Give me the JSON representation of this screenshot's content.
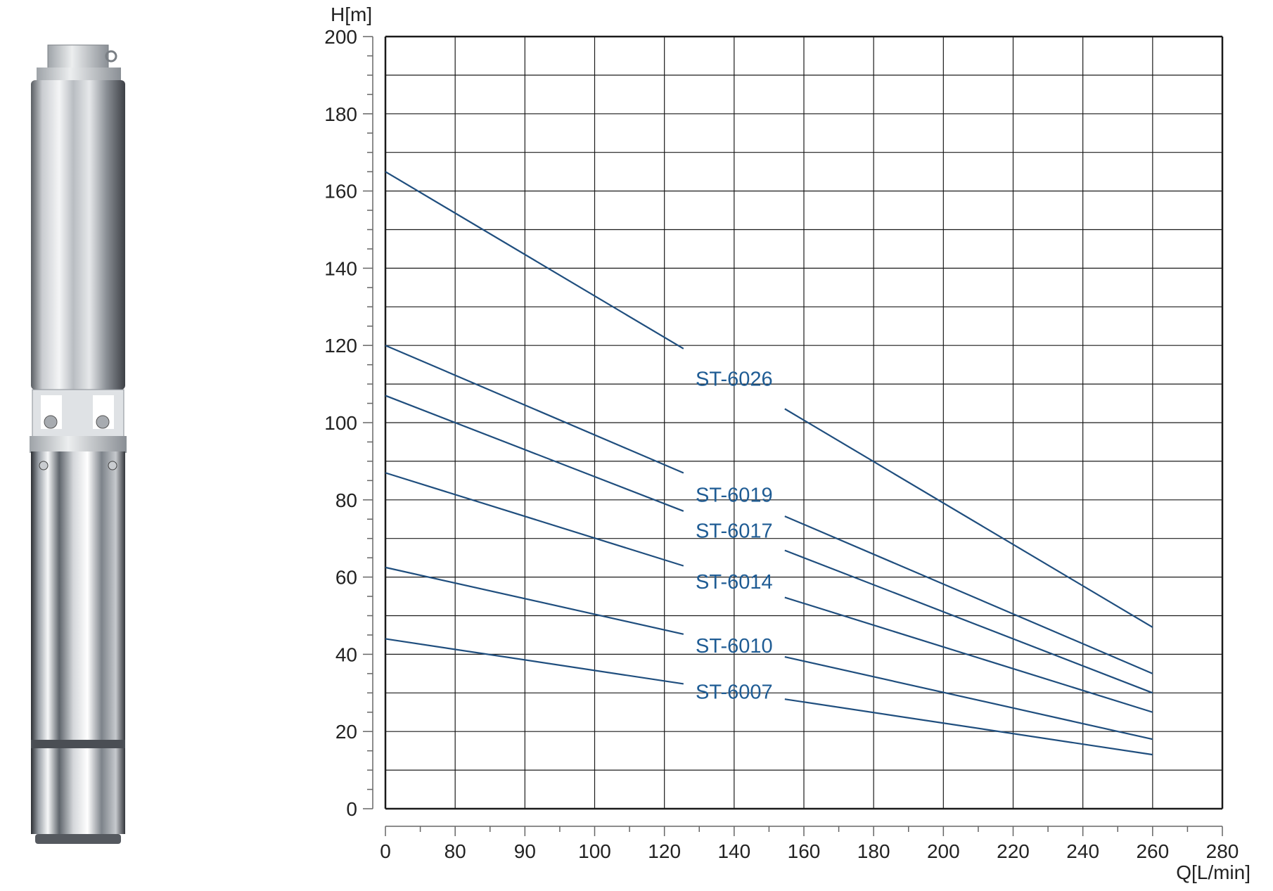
{
  "chart_data": {
    "type": "line",
    "ylabel": "H[m]",
    "xlabel": "Q[L/min]",
    "x_ticks": [
      "0",
      "80",
      "90",
      "100",
      "120",
      "140",
      "160",
      "180",
      "200",
      "220",
      "240",
      "260",
      "280"
    ],
    "y_ticks": [
      "0",
      "20",
      "40",
      "60",
      "80",
      "100",
      "120",
      "140",
      "160",
      "180",
      "200"
    ],
    "ylim": [
      0,
      200
    ],
    "grid": true,
    "series": [
      {
        "name": "ST-6026",
        "points": [
          [
            "0",
            165
          ],
          [
            "260",
            47
          ]
        ],
        "label_at": "140"
      },
      {
        "name": "ST-6019",
        "points": [
          [
            "0",
            120
          ],
          [
            "260",
            35
          ]
        ],
        "label_at": "140"
      },
      {
        "name": "ST-6017",
        "points": [
          [
            "0",
            107
          ],
          [
            "260",
            30
          ]
        ],
        "label_at": "140"
      },
      {
        "name": "ST-6014",
        "points": [
          [
            "0",
            87
          ],
          [
            "260",
            25
          ]
        ],
        "label_at": "140"
      },
      {
        "name": "ST-6010",
        "points": [
          [
            "0",
            62.5
          ],
          [
            "260",
            18
          ]
        ],
        "label_at": "140"
      },
      {
        "name": "ST-6007",
        "points": [
          [
            "0",
            44
          ],
          [
            "260",
            14
          ]
        ],
        "label_at": "140"
      }
    ]
  },
  "colors": {
    "curve": "#1f4e7e",
    "label": "#1f5c94",
    "grid": "#1a1a1a",
    "axis_text": "#222222"
  },
  "illustration": {
    "icon": "submersible-pump-icon"
  }
}
